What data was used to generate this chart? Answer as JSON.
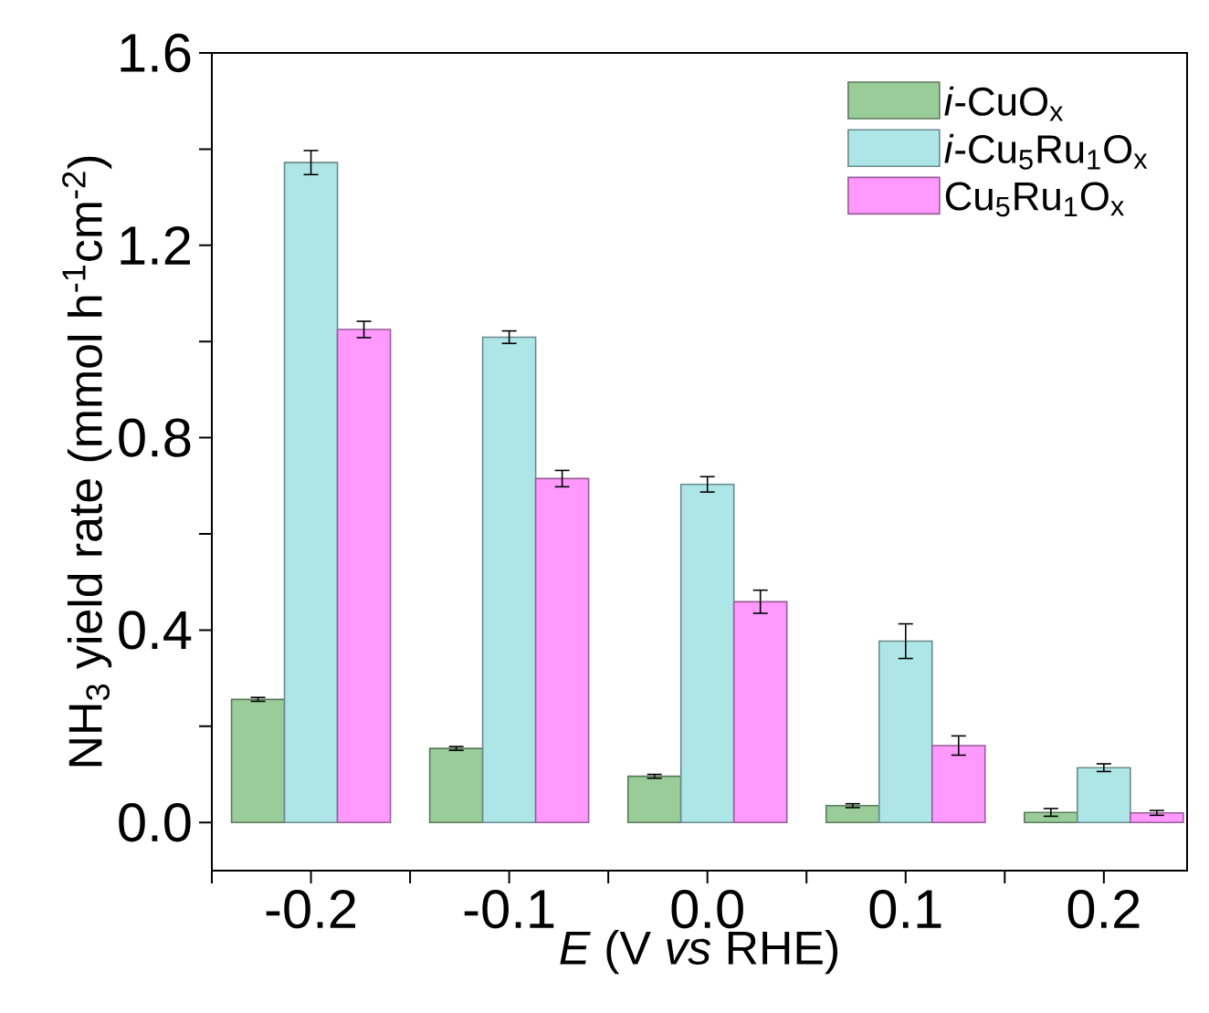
{
  "chart_data": {
    "type": "bar",
    "xlabel": "*E* (V *vs* RHE)",
    "ylabel": "NH$_{3}$ yield rate (mmol h$^{-1}$cm$^{-2}$)",
    "categories": [
      "-0.2",
      "-0.1",
      "0.0",
      "0.1",
      "0.2"
    ],
    "series": [
      {
        "name": "*i*-CuO$_{x}$",
        "color": "#99cc99",
        "values": [
          0.256,
          0.154,
          0.096,
          0.035,
          0.021
        ],
        "errors": [
          0.004,
          0.004,
          0.004,
          0.004,
          0.008
        ]
      },
      {
        "name": "*i*-Cu$_{5}$Ru$_{1}$O$_{x}$",
        "color": "#aee6e8",
        "values": [
          1.372,
          1.009,
          0.703,
          0.377,
          0.114
        ],
        "errors": [
          0.025,
          0.013,
          0.016,
          0.036,
          0.008
        ]
      },
      {
        "name": "Cu$_{5}$Ru$_{1}$O$_{x}$",
        "color": "#ff99ff",
        "values": [
          1.025,
          0.715,
          0.459,
          0.16,
          0.02
        ],
        "errors": [
          0.017,
          0.017,
          0.024,
          0.02,
          0.005
        ]
      }
    ],
    "ylim": [
      -0.1,
      1.6
    ],
    "yticks": [
      {
        "value": 0,
        "label": "0.0"
      },
      {
        "value": 0.2,
        "label": null
      },
      {
        "value": 0.4,
        "label": "0.4"
      },
      {
        "value": 0.6,
        "label": null
      },
      {
        "value": 0.8,
        "label": "0.8"
      },
      {
        "value": 1.0,
        "label": null
      },
      {
        "value": 1.2,
        "label": "1.2"
      },
      {
        "value": 1.4,
        "label": null
      },
      {
        "value": 1.6,
        "label": "1.6"
      }
    ],
    "legend": "top right",
    "grid": false
  }
}
